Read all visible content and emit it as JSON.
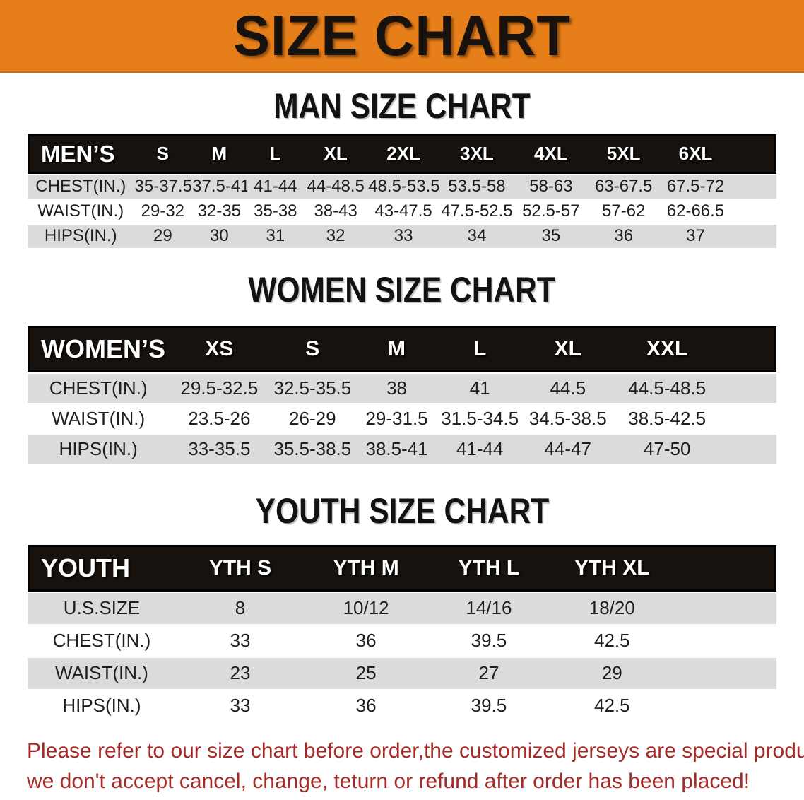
{
  "banner": {
    "title": "SIZE CHART",
    "bg_color": "#E67E1A"
  },
  "sections": [
    {
      "heading": "MAN SIZE CHART",
      "table": {
        "header_label": "MEN’S",
        "columns": [
          "S",
          "M",
          "L",
          "XL",
          "2XL",
          "3XL",
          "4XL",
          "5XL",
          "6XL"
        ],
        "rows": [
          {
            "label": "CHEST(IN.)",
            "values": [
              "35-37.5",
              "37.5-41",
              "41-44",
              "44-48.5",
              "48.5-53.5",
              "53.5-58",
              "58-63",
              "63-67.5",
              "67.5-72"
            ]
          },
          {
            "label": "WAIST(IN.)",
            "values": [
              "29-32",
              "32-35",
              "35-38",
              "38-43",
              "43-47.5",
              "47.5-52.5",
              "52.5-57",
              "57-62",
              "62-66.5"
            ]
          },
          {
            "label": "HIPS(IN.)",
            "values": [
              "29",
              "30",
              "31",
              "32",
              "33",
              "34",
              "35",
              "36",
              "37"
            ]
          }
        ]
      }
    },
    {
      "heading": "WOMEN SIZE CHART",
      "table": {
        "header_label": "WOMEN’S",
        "columns": [
          "XS",
          "S",
          "M",
          "L",
          "XL",
          "XXL"
        ],
        "rows": [
          {
            "label": "CHEST(IN.)",
            "values": [
              "29.5-32.5",
              "32.5-35.5",
              "38",
              "41",
              "44.5",
              "44.5-48.5"
            ]
          },
          {
            "label": "WAIST(IN.)",
            "values": [
              "23.5-26",
              "26-29",
              "29-31.5",
              "31.5-34.5",
              "34.5-38.5",
              "38.5-42.5"
            ]
          },
          {
            "label": "HIPS(IN.)",
            "values": [
              "33-35.5",
              "35.5-38.5",
              "38.5-41",
              "41-44",
              "44-47",
              "47-50"
            ]
          }
        ]
      }
    },
    {
      "heading": "YOUTH SIZE CHART",
      "table": {
        "header_label": "YOUTH",
        "columns": [
          "YTH S",
          "YTH M",
          "YTH L",
          "YTH XL"
        ],
        "rows": [
          {
            "label": "U.S.SIZE",
            "values": [
              "8",
              "10/12",
              "14/16",
              "18/20"
            ]
          },
          {
            "label": "CHEST(IN.)",
            "values": [
              "33",
              "36",
              "39.5",
              "42.5"
            ]
          },
          {
            "label": "WAIST(IN.)",
            "values": [
              "23",
              "25",
              "27",
              "29"
            ]
          },
          {
            "label": "HIPS(IN.)",
            "values": [
              "33",
              "36",
              "39.5",
              "42.5"
            ]
          }
        ]
      }
    }
  ],
  "disclaimer": {
    "color": "#A62B28",
    "lines": [
      "Please refer to our size chart before order,the customized jerseys are special products,",
      "we don't accept cancel, change, teturn or refund after order has been placed!"
    ]
  }
}
